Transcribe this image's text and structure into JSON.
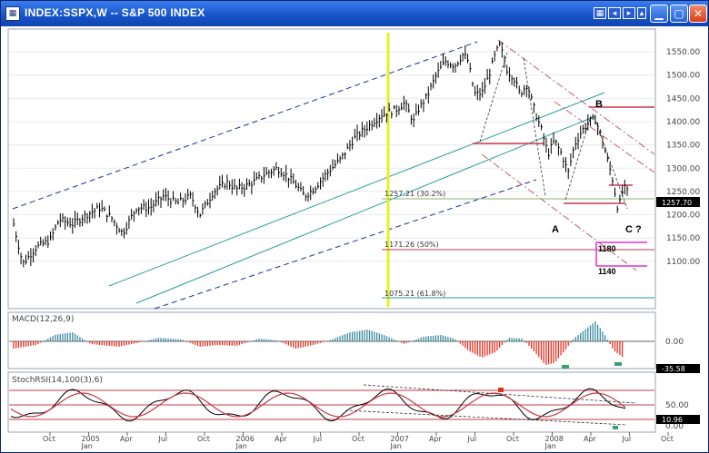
{
  "window": {
    "title": "INDEX:SSPX,W -- S&P 500 INDEX",
    "icon": "chart-app-icon",
    "controls": [
      "minimize-icon",
      "maximize-icon",
      "close-icon"
    ]
  },
  "price_axis": {
    "ticks": [
      "1550.00",
      "1500.00",
      "1450.00",
      "1400.00",
      "1350.00",
      "1300.00",
      "1250.00",
      "1200.00",
      "1150.00",
      "1100.00"
    ]
  },
  "last_price": "1257.70",
  "annotations": {
    "fib_1": "1257.21 (30.2%)",
    "fib_2": "1171.26 (50%)",
    "fib_3": "1075.21 (61.8%)",
    "wave_a": "A",
    "wave_b": "B",
    "wave_c": "C ?",
    "target_1": "1180",
    "target_2": "1140"
  },
  "macd": {
    "title": "MACD(12,26,9)",
    "zero_label": "0.00",
    "value": "-35.58"
  },
  "stoch": {
    "title": "StochRSI(14,100(3),6)",
    "level_mid": "50.00",
    "value": "10.96",
    "level_low": "0.00"
  },
  "time_axis": {
    "labels": [
      {
        "m": "Oct",
        "y": ""
      },
      {
        "m": "2005",
        "y": "Jan"
      },
      {
        "m": "Apr",
        "y": ""
      },
      {
        "m": "Jul",
        "y": ""
      },
      {
        "m": "Oct",
        "y": ""
      },
      {
        "m": "2006",
        "y": "Jan"
      },
      {
        "m": "Apr",
        "y": ""
      },
      {
        "m": "Jul",
        "y": ""
      },
      {
        "m": "Oct",
        "y": ""
      },
      {
        "m": "2007",
        "y": "Jan"
      },
      {
        "m": "Apr",
        "y": ""
      },
      {
        "m": "Jul",
        "y": ""
      },
      {
        "m": "Oct",
        "y": ""
      },
      {
        "m": "2008",
        "y": "Jan"
      },
      {
        "m": "Apr",
        "y": ""
      },
      {
        "m": "Jul",
        "y": ""
      },
      {
        "m": "Oct",
        "y": ""
      }
    ]
  },
  "colors": {
    "price": "#000000",
    "channel_blue": "#1a2f9e",
    "channel_teal": "#2a9a9a",
    "fib": "#c83848",
    "highlight": "#e8f020",
    "macd_pos": "#3a8aa0",
    "macd_neg": "#e83020",
    "target": "#e030d0"
  }
}
